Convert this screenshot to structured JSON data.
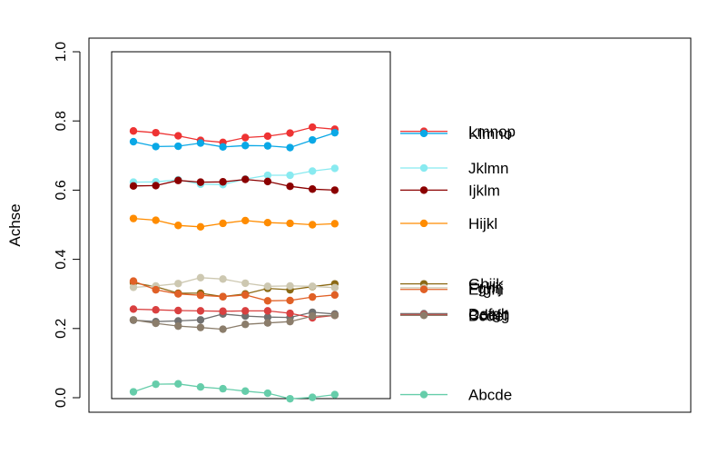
{
  "chart_data": {
    "type": "line",
    "title": "",
    "xlabel": "",
    "ylabel": "Achse",
    "ylim": [
      0,
      1.0
    ],
    "yticks": [
      "0.0",
      "0.2",
      "0.4",
      "0.6",
      "0.8",
      "1.0"
    ],
    "x": [
      1,
      2,
      3,
      4,
      5,
      6,
      7,
      8,
      9,
      10
    ],
    "grid": false,
    "legend_position": "right",
    "series": [
      {
        "name": "Lmnop",
        "color": "#ee3333",
        "values": [
          0.771,
          0.766,
          0.757,
          0.744,
          0.738,
          0.752,
          0.756,
          0.765,
          0.782,
          0.776
        ]
      },
      {
        "name": "Klmno",
        "color": "#0aa8e6",
        "values": [
          0.74,
          0.726,
          0.727,
          0.736,
          0.725,
          0.729,
          0.728,
          0.723,
          0.745,
          0.766
        ]
      },
      {
        "name": "Jklmn",
        "color": "#88eaf0",
        "values": [
          0.623,
          0.624,
          0.63,
          0.617,
          0.616,
          0.632,
          0.643,
          0.643,
          0.655,
          0.663
        ]
      },
      {
        "name": "Ijklm",
        "color": "#8b0000",
        "values": [
          0.612,
          0.613,
          0.628,
          0.623,
          0.624,
          0.631,
          0.625,
          0.611,
          0.603,
          0.6
        ]
      },
      {
        "name": "Hijkl",
        "color": "#ff8c00",
        "values": [
          0.518,
          0.513,
          0.498,
          0.494,
          0.504,
          0.512,
          0.506,
          0.504,
          0.5,
          0.503
        ]
      },
      {
        "name": "Ghijk",
        "color": "#8b6914",
        "values": [
          0.332,
          0.321,
          0.302,
          0.302,
          0.292,
          0.3,
          0.316,
          0.312,
          0.321,
          0.329
        ]
      },
      {
        "name": "Fghij",
        "color": "#cdc8b1",
        "values": [
          0.319,
          0.323,
          0.33,
          0.347,
          0.343,
          0.331,
          0.322,
          0.323,
          0.322,
          0.318
        ]
      },
      {
        "name": "Efghi",
        "color": "#e06026",
        "values": [
          0.337,
          0.312,
          0.3,
          0.296,
          0.292,
          0.297,
          0.28,
          0.281,
          0.291,
          0.297
        ]
      },
      {
        "name": "Defgh",
        "color": "#707070",
        "values": [
          0.224,
          0.22,
          0.222,
          0.225,
          0.242,
          0.236,
          0.233,
          0.232,
          0.247,
          0.242
        ]
      },
      {
        "name": "Cdefg",
        "color": "#d94040",
        "values": [
          0.256,
          0.254,
          0.252,
          0.251,
          0.25,
          0.251,
          0.251,
          0.244,
          0.231,
          0.238
        ]
      },
      {
        "name": "Bcdef",
        "color": "#8b7d6b",
        "values": [
          0.225,
          0.215,
          0.207,
          0.203,
          0.198,
          0.212,
          0.216,
          0.22,
          0.236,
          0.238
        ]
      },
      {
        "name": "Abcde",
        "color": "#66cdaa",
        "values": [
          0.017,
          0.039,
          0.04,
          0.031,
          0.026,
          0.019,
          0.013,
          -0.003,
          0.001,
          0.009
        ]
      }
    ],
    "legend": [
      {
        "name": "Lmnop",
        "color": "#ee3333",
        "y": 0.77
      },
      {
        "name": "Klmno",
        "color": "#0aa8e6",
        "y": 0.764
      },
      {
        "name": "Jklmn",
        "color": "#88eaf0",
        "y": 0.664
      },
      {
        "name": "Ijklm",
        "color": "#8b0000",
        "y": 0.6
      },
      {
        "name": "Hijkl",
        "color": "#ff8c00",
        "y": 0.504
      },
      {
        "name": "Ghijk",
        "color": "#8b6914",
        "y": 0.329
      },
      {
        "name": "Fghij",
        "color": "#cdc8b1",
        "y": 0.318
      },
      {
        "name": "Efghi",
        "color": "#e06026",
        "y": 0.313
      },
      {
        "name": "Defgh",
        "color": "#707070",
        "y": 0.243
      },
      {
        "name": "Cdefg",
        "color": "#d94040",
        "y": 0.24
      },
      {
        "name": "Bcdef",
        "color": "#8b7d6b",
        "y": 0.238
      },
      {
        "name": "Abcde",
        "color": "#66cdaa",
        "y": 0.009
      }
    ]
  }
}
